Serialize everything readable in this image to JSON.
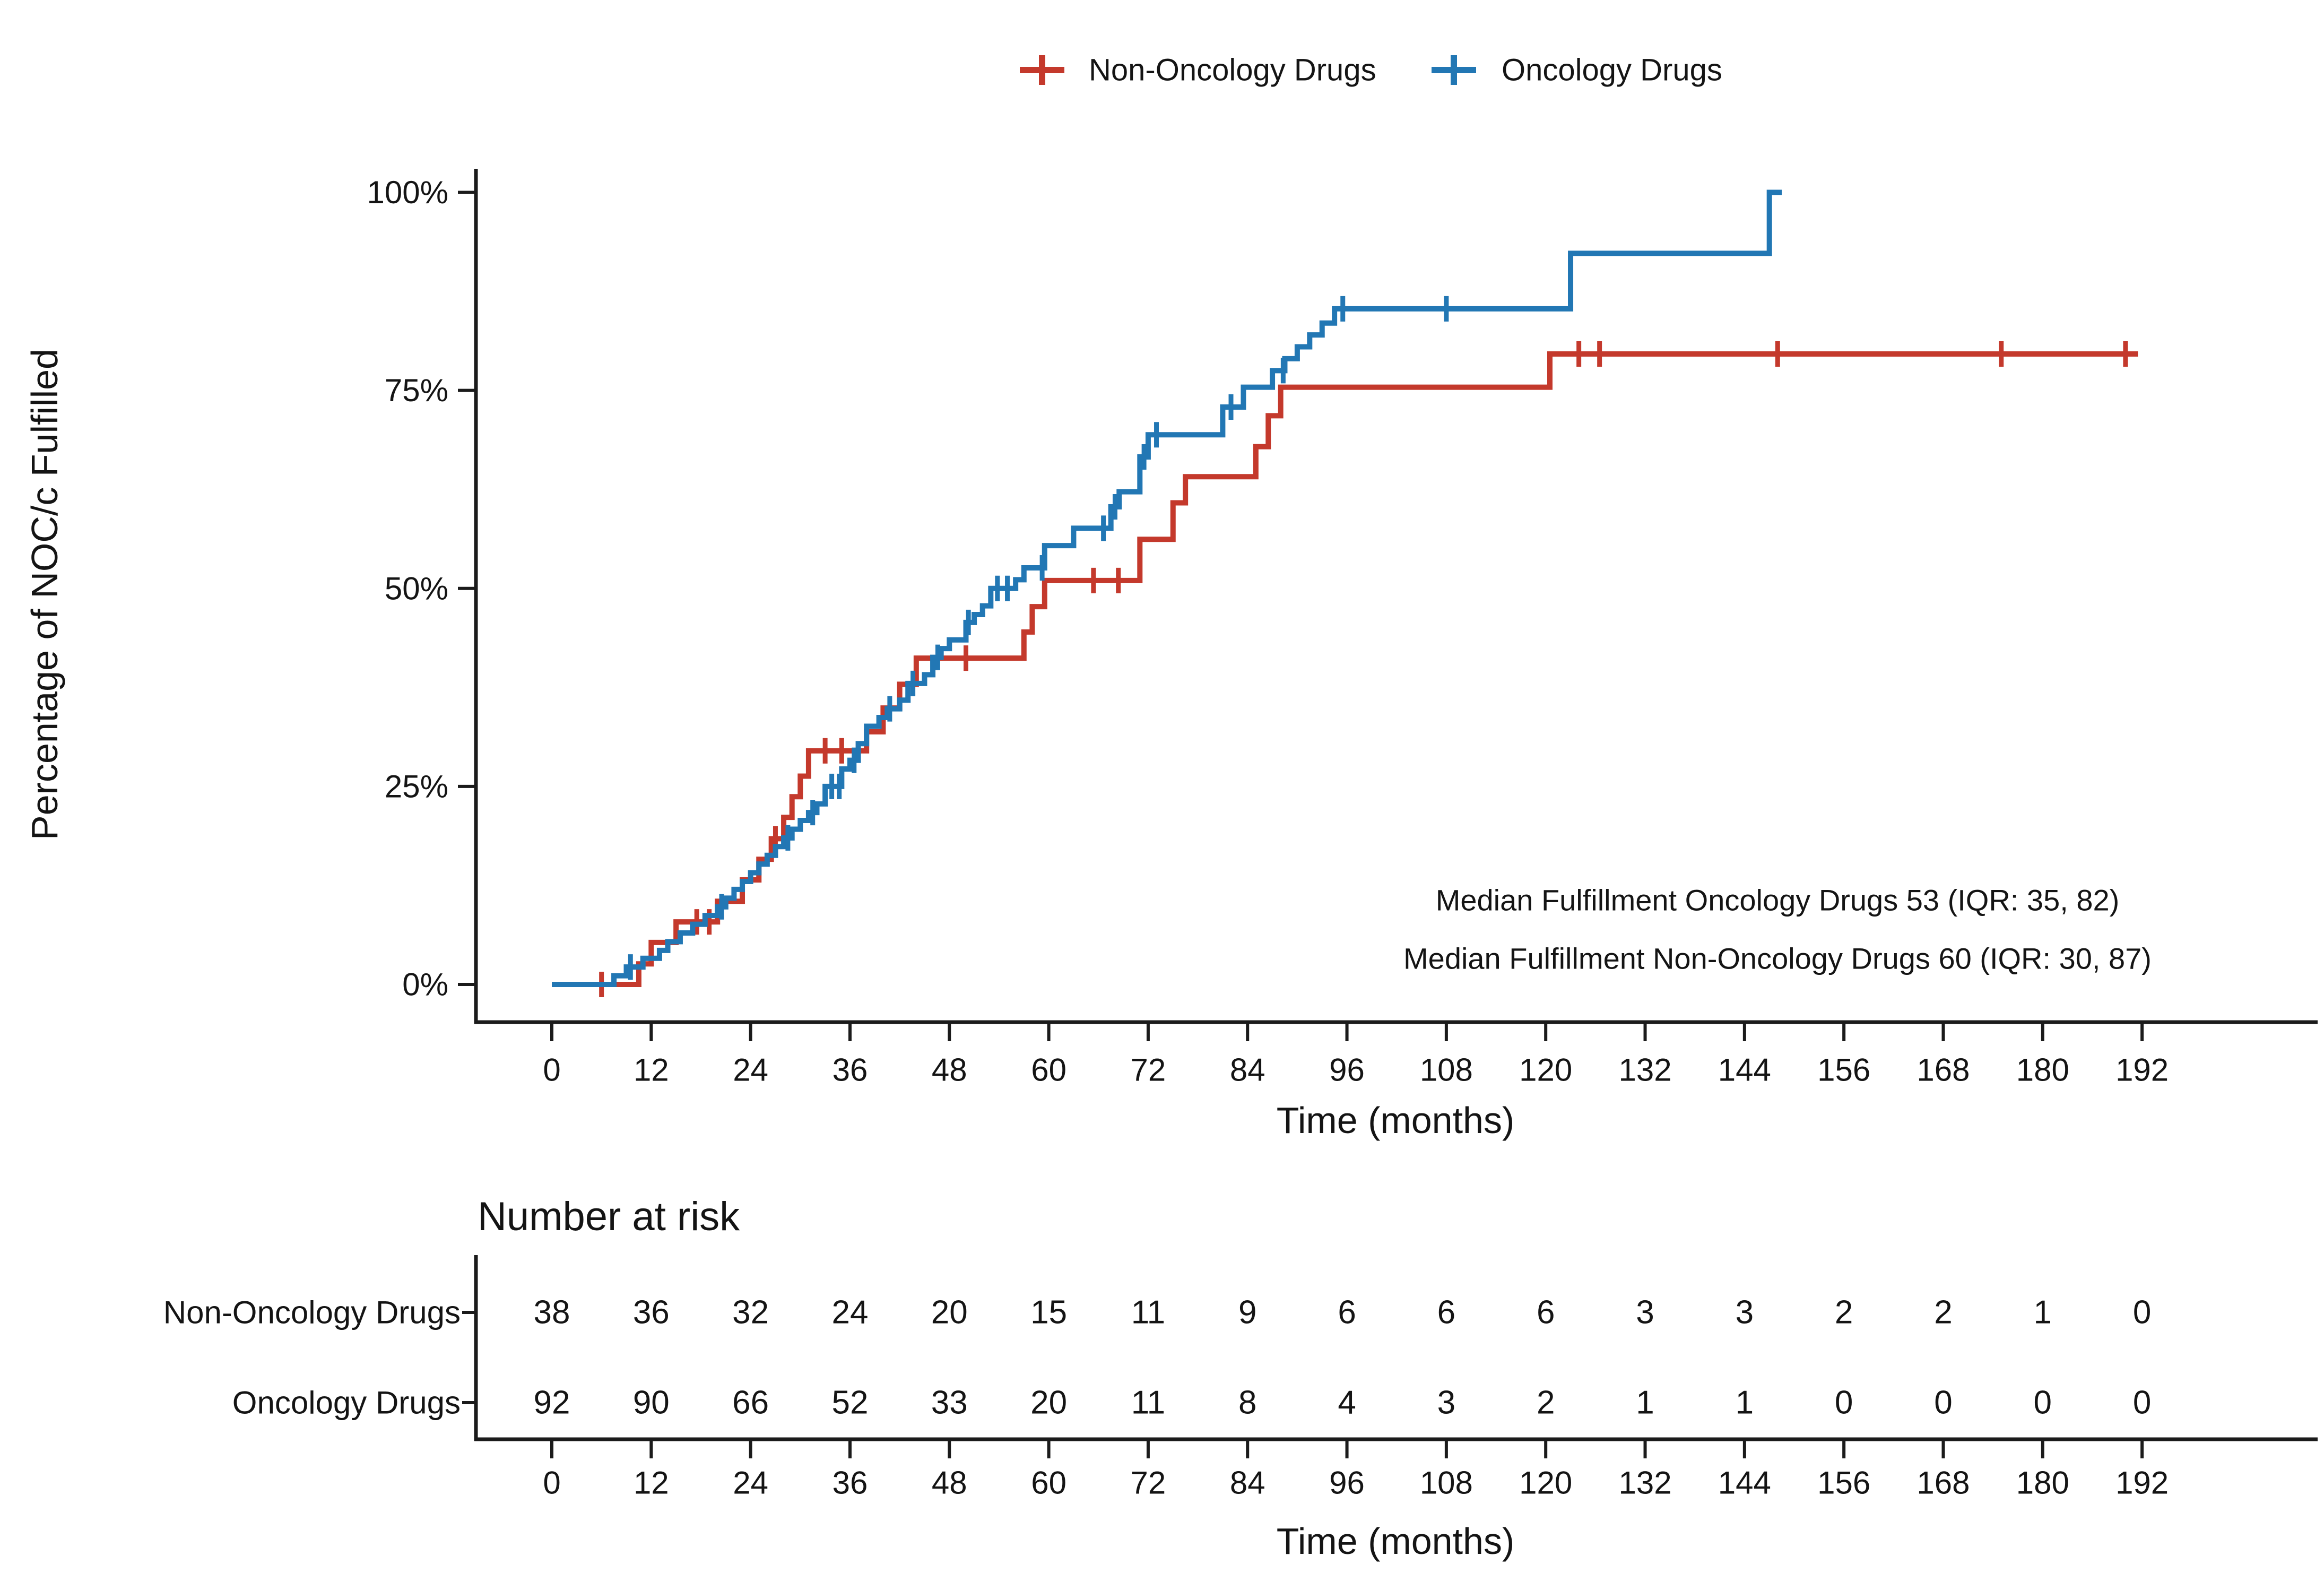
{
  "text_color": "#141414",
  "legend": {
    "items": [
      {
        "label": "Non-Oncology Drugs",
        "color": "#C4392C"
      },
      {
        "label": "Oncology Drugs",
        "color": "#2277B4"
      }
    ]
  },
  "y_axis": {
    "title": "Percentage of NOC/c Fulfilled",
    "tick_labels": [
      "100%",
      "75%",
      "50%",
      "25%",
      "0%"
    ],
    "tick_values": [
      100,
      75,
      50,
      25,
      0
    ]
  },
  "x_axis": {
    "title": "Time (months)",
    "ticks": [
      0,
      12,
      24,
      36,
      48,
      60,
      72,
      84,
      96,
      108,
      120,
      132,
      144,
      156,
      168,
      180,
      192
    ]
  },
  "annotations": {
    "line1": "Median Fulfillment Oncology Drugs 53 (IQR: 35, 82)",
    "line2": "Median Fulfillment Non-Oncology Drugs 60 (IQR: 30, 87)"
  },
  "chart_data": {
    "type": "line",
    "subtype": "kaplan-meier-cumulative-step",
    "title": "",
    "xlabel": "Time (months)",
    "ylabel": "Percentage of NOC/c Fulfilled",
    "xlim": [
      0,
      192
    ],
    "ylim": [
      0,
      100
    ],
    "grid": false,
    "legend_position": "top",
    "median_fulfillment": {
      "oncology": {
        "median": 53,
        "iqr": [
          35,
          82
        ]
      },
      "non_oncology": {
        "median": 60,
        "iqr": [
          30,
          87
        ]
      }
    },
    "series": [
      {
        "name": "Non-Oncology Drugs",
        "color": "#C4392C",
        "steps": [
          [
            0,
            0
          ],
          [
            10.5,
            2.6
          ],
          [
            12,
            5.3
          ],
          [
            15,
            7.9
          ],
          [
            20,
            10.5
          ],
          [
            23,
            13.2
          ],
          [
            25,
            15.8
          ],
          [
            26.5,
            18.4
          ],
          [
            28,
            21.1
          ],
          [
            29,
            23.7
          ],
          [
            30,
            26.3
          ],
          [
            31,
            29.5
          ],
          [
            38,
            31.9
          ],
          [
            40,
            34.9
          ],
          [
            42,
            37.9
          ],
          [
            44,
            41.2
          ],
          [
            57,
            44.5
          ],
          [
            58,
            47.7
          ],
          [
            59.5,
            51
          ],
          [
            71,
            56.2
          ],
          [
            75,
            60.8
          ],
          [
            76.5,
            64.1
          ],
          [
            85,
            67.9
          ],
          [
            86.5,
            71.8
          ],
          [
            88,
            75.4
          ],
          [
            120.5,
            79.6
          ],
          [
            191.5,
            79.6
          ]
        ],
        "censors": [
          [
            6,
            0
          ],
          [
            17.5,
            7.9
          ],
          [
            19,
            7.9
          ],
          [
            27,
            18.4
          ],
          [
            33,
            29.5
          ],
          [
            35,
            29.5
          ],
          [
            50,
            41.2
          ],
          [
            65.4,
            51
          ],
          [
            68.4,
            51
          ],
          [
            124,
            79.6
          ],
          [
            126.5,
            79.6
          ],
          [
            148,
            79.6
          ],
          [
            175,
            79.6
          ],
          [
            190,
            79.6
          ]
        ]
      },
      {
        "name": "Oncology Drugs",
        "color": "#2277B4",
        "steps": [
          [
            0,
            0
          ],
          [
            7.5,
            1.1
          ],
          [
            9,
            2.2
          ],
          [
            11,
            3.3
          ],
          [
            13,
            4.3
          ],
          [
            14,
            5.4
          ],
          [
            15.5,
            6.5
          ],
          [
            17,
            7.6
          ],
          [
            18.5,
            8.7
          ],
          [
            20,
            9.8
          ],
          [
            21,
            10.9
          ],
          [
            22,
            12
          ],
          [
            23,
            13
          ],
          [
            24,
            14.1
          ],
          [
            25,
            15.2
          ],
          [
            26,
            16.3
          ],
          [
            27,
            17.4
          ],
          [
            28,
            18.5
          ],
          [
            29,
            19.6
          ],
          [
            30,
            20.7
          ],
          [
            31,
            21.7
          ],
          [
            32,
            22.8
          ],
          [
            33,
            25
          ],
          [
            35,
            27.2
          ],
          [
            36,
            28.3
          ],
          [
            37,
            30.4
          ],
          [
            38,
            32.6
          ],
          [
            39.5,
            33.7
          ],
          [
            40.5,
            34.8
          ],
          [
            42,
            35.9
          ],
          [
            43,
            38
          ],
          [
            45,
            39.1
          ],
          [
            46,
            41.3
          ],
          [
            47,
            42.4
          ],
          [
            48,
            43.5
          ],
          [
            50,
            45.7
          ],
          [
            51,
            46.7
          ],
          [
            52,
            47.8
          ],
          [
            53,
            50
          ],
          [
            56,
            51.1
          ],
          [
            57,
            52.6
          ],
          [
            59.5,
            55.4
          ],
          [
            63,
            57.6
          ],
          [
            67.5,
            60.3
          ],
          [
            68.5,
            62.2
          ],
          [
            71,
            66.6
          ],
          [
            72,
            69.4
          ],
          [
            81,
            72.9
          ],
          [
            83.5,
            75.4
          ],
          [
            87,
            77.5
          ],
          [
            88.5,
            79
          ],
          [
            90,
            80.5
          ],
          [
            91.5,
            82
          ],
          [
            93,
            83.5
          ],
          [
            94.5,
            85.3
          ],
          [
            123,
            92.3
          ],
          [
            147,
            100
          ],
          [
            148.5,
            100
          ]
        ],
        "censors": [
          [
            9.5,
            2.2
          ],
          [
            20.5,
            9.8
          ],
          [
            28.5,
            18.5
          ],
          [
            31.5,
            21.7
          ],
          [
            33.8,
            25
          ],
          [
            34.7,
            25
          ],
          [
            36.5,
            28.3
          ],
          [
            40.8,
            34.8
          ],
          [
            43.6,
            38
          ],
          [
            46.6,
            41.3
          ],
          [
            50.3,
            45.7
          ],
          [
            53.8,
            50
          ],
          [
            55,
            50
          ],
          [
            59.2,
            52.6
          ],
          [
            66.6,
            57.6
          ],
          [
            68,
            60.3
          ],
          [
            71.5,
            66.6
          ],
          [
            73,
            69.4
          ],
          [
            82,
            72.9
          ],
          [
            88.3,
            77.5
          ],
          [
            95.5,
            85.3
          ],
          [
            108,
            85.3
          ]
        ]
      }
    ]
  },
  "risk_table": {
    "title": "Number at risk",
    "x_title": "Time (months)",
    "ticks": [
      0,
      12,
      24,
      36,
      48,
      60,
      72,
      84,
      96,
      108,
      120,
      132,
      144,
      156,
      168,
      180,
      192
    ],
    "rows": [
      {
        "label": "Non-Oncology Drugs",
        "color": "#C4392C",
        "values": [
          38,
          36,
          32,
          24,
          20,
          15,
          11,
          9,
          6,
          6,
          6,
          3,
          3,
          2,
          2,
          1,
          0
        ]
      },
      {
        "label": "Oncology Drugs",
        "color": "#2277B4",
        "values": [
          92,
          90,
          66,
          52,
          33,
          20,
          11,
          8,
          4,
          3,
          2,
          1,
          1,
          0,
          0,
          0,
          0
        ]
      }
    ]
  }
}
